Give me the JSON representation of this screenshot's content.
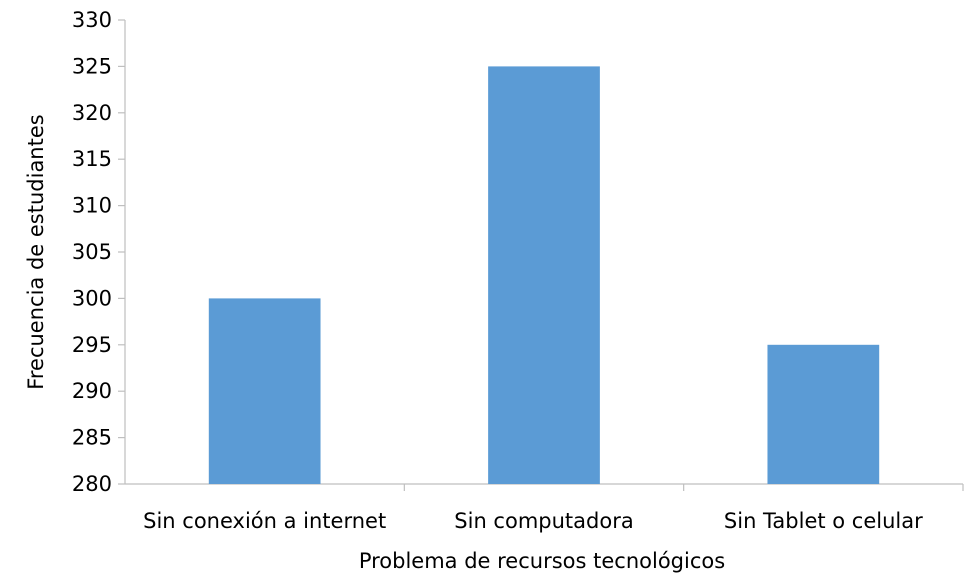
{
  "chart_data": {
    "type": "bar",
    "title": "",
    "xlabel": "Problema de recursos tecnológicos",
    "ylabel": "Frecuencia de estudiantes",
    "categories": [
      "Sin conexión a internet",
      "Sin computadora",
      "Sin Tablet o celular"
    ],
    "values": [
      300,
      325,
      295
    ],
    "ylim": [
      280,
      330
    ],
    "yticks": [
      280,
      285,
      290,
      295,
      300,
      305,
      310,
      315,
      320,
      325,
      330
    ],
    "grid": false,
    "legend": "none",
    "bar_color": "#5B9BD5",
    "axis_color": "#BFBFBF"
  }
}
